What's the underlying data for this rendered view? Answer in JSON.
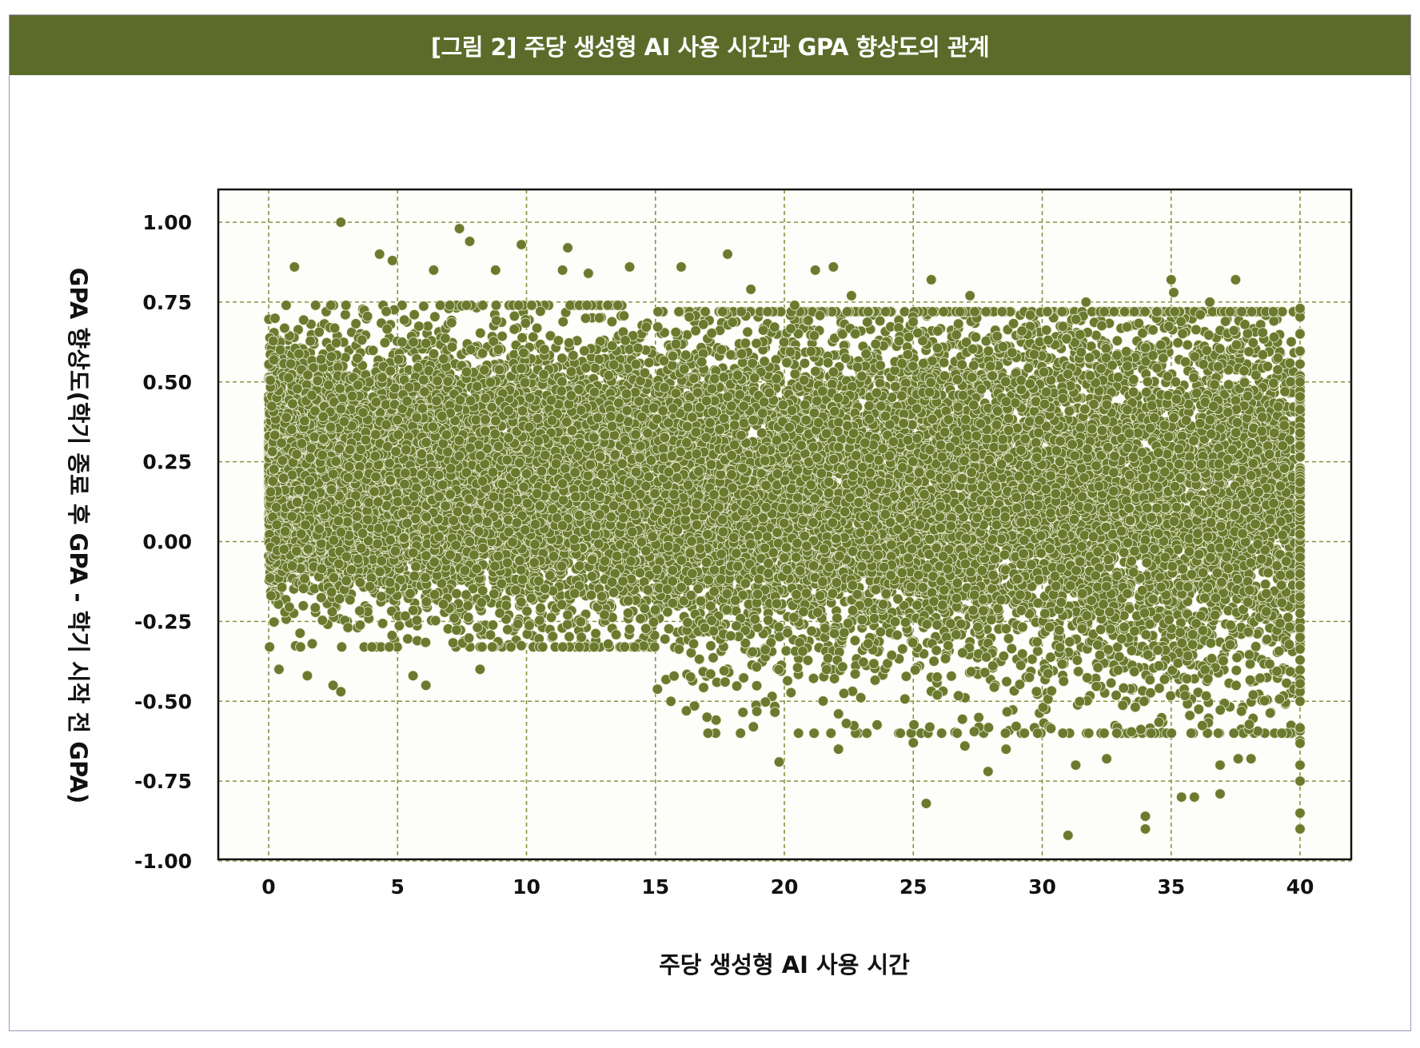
{
  "title": "[그림 2] 주당 생성형 AI 사용 시간과 GPA 향상도의 관계",
  "colors": {
    "title_bar": "#5d6b2a",
    "point": "#6b7a2e",
    "grid": "#8a9244"
  },
  "chart_data": {
    "type": "scatter",
    "title": "[그림 2] 주당 생성형 AI 사용 시간과 GPA 향상도의 관계",
    "xlabel": "주당 생성형 AI 사용 시간",
    "ylabel": "GPA 향상도(학기 종료 후 GPA - 학기 시작 전 GPA)",
    "xlim": [
      -2,
      42
    ],
    "ylim": [
      -1.0,
      1.1
    ],
    "x_ticks": [
      "0",
      "5",
      "10",
      "15",
      "20",
      "25",
      "30",
      "35",
      "40"
    ],
    "x_tick_values": [
      0,
      5,
      10,
      15,
      20,
      25,
      30,
      35,
      40
    ],
    "y_ticks": [
      "1.00",
      "0.75",
      "0.50",
      "0.25",
      "0.00",
      "-0.25",
      "-0.50",
      "-0.75",
      "-1.00"
    ],
    "y_tick_values": [
      1.0,
      0.75,
      0.5,
      0.25,
      0.0,
      -0.25,
      -0.5,
      -0.75,
      -1.0
    ],
    "grid": true,
    "approx_point_count": 20000,
    "description_of_distribution": "dense cloud of points; roughly centered at 0.25 for low hours declining slightly toward 0.15 near 40 hours; spread widens with hours; a vertical column of points at exactly 40 hours spanning about -0.9 to 0.73",
    "series": [
      {
        "name": "",
        "points": [
          [
            2.8,
            1.0
          ],
          [
            7.4,
            0.98
          ],
          [
            7.8,
            0.94
          ],
          [
            9.8,
            0.93
          ],
          [
            11.6,
            0.92
          ],
          [
            4.3,
            0.9
          ],
          [
            4.8,
            0.88
          ],
          [
            1.0,
            0.86
          ],
          [
            6.4,
            0.85
          ],
          [
            8.8,
            0.85
          ],
          [
            11.4,
            0.85
          ],
          [
            12.4,
            0.84
          ],
          [
            14.0,
            0.86
          ],
          [
            16.0,
            0.86
          ],
          [
            17.8,
            0.9
          ],
          [
            21.2,
            0.85
          ],
          [
            21.9,
            0.86
          ],
          [
            25.7,
            0.82
          ],
          [
            35.0,
            0.82
          ],
          [
            37.5,
            0.82
          ],
          [
            35.1,
            0.78
          ],
          [
            22.6,
            0.77
          ],
          [
            27.2,
            0.77
          ],
          [
            31.7,
            0.75
          ],
          [
            36.5,
            0.75
          ],
          [
            18.7,
            0.79
          ],
          [
            20.4,
            0.74
          ],
          [
            0.4,
            -0.4
          ],
          [
            1.5,
            -0.42
          ],
          [
            2.5,
            -0.45
          ],
          [
            2.8,
            -0.47
          ],
          [
            5.6,
            -0.42
          ],
          [
            6.1,
            -0.45
          ],
          [
            8.2,
            -0.4
          ],
          [
            15.6,
            -0.5
          ],
          [
            16.2,
            -0.53
          ],
          [
            17.0,
            -0.55
          ],
          [
            18.3,
            -0.6
          ],
          [
            18.8,
            -0.58
          ],
          [
            19.8,
            -0.69
          ],
          [
            22.1,
            -0.65
          ],
          [
            23.2,
            -0.6
          ],
          [
            25.0,
            -0.63
          ],
          [
            25.5,
            -0.82
          ],
          [
            26.1,
            -0.6
          ],
          [
            27.0,
            -0.64
          ],
          [
            27.9,
            -0.72
          ],
          [
            28.6,
            -0.65
          ],
          [
            31.0,
            -0.92
          ],
          [
            31.3,
            -0.7
          ],
          [
            32.5,
            -0.68
          ],
          [
            34.0,
            -0.86
          ],
          [
            34.0,
            -0.9
          ],
          [
            35.4,
            -0.8
          ],
          [
            35.9,
            -0.8
          ],
          [
            36.9,
            -0.79
          ],
          [
            36.9,
            -0.7
          ],
          [
            37.6,
            -0.68
          ],
          [
            38.1,
            -0.68
          ],
          [
            40.0,
            0.73
          ],
          [
            40.0,
            0.65
          ],
          [
            40.0,
            0.5
          ],
          [
            40.0,
            0.3
          ],
          [
            40.0,
            0.1
          ],
          [
            40.0,
            -0.1
          ],
          [
            40.0,
            -0.3
          ],
          [
            40.0,
            -0.5
          ],
          [
            40.0,
            -0.7
          ],
          [
            40.0,
            -0.75
          ],
          [
            40.0,
            -0.85
          ],
          [
            40.0,
            -0.9
          ]
        ]
      }
    ]
  }
}
